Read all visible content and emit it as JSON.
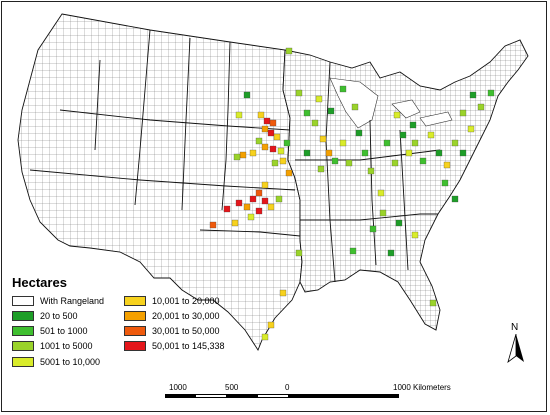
{
  "legend": {
    "title": "Hectares",
    "items": [
      {
        "label": "With Rangeland",
        "color": "#ffffff"
      },
      {
        "label": "20 to 500",
        "color": "#1e9e28"
      },
      {
        "label": "501 to 1000",
        "color": "#3fbf2f"
      },
      {
        "label": "1001 to 5000",
        "color": "#9ad32a"
      },
      {
        "label": "5001 to 10,000",
        "color": "#d9ec2a"
      },
      {
        "label": "10,001 to 20,000",
        "color": "#f7d21e"
      },
      {
        "label": "20,001 to 30,000",
        "color": "#f4a000"
      },
      {
        "label": "30,001 to 50,000",
        "color": "#ef5a0c"
      },
      {
        "label": "50,001 to 145,338",
        "color": "#e4161b"
      }
    ]
  },
  "scale": {
    "labels": [
      "1000",
      "500",
      "0",
      "1000 Kilometers"
    ]
  },
  "north_arrow": {
    "label": "N",
    "icon": "north-arrow-icon"
  },
  "map": {
    "region": "contiguous-united-states"
  }
}
